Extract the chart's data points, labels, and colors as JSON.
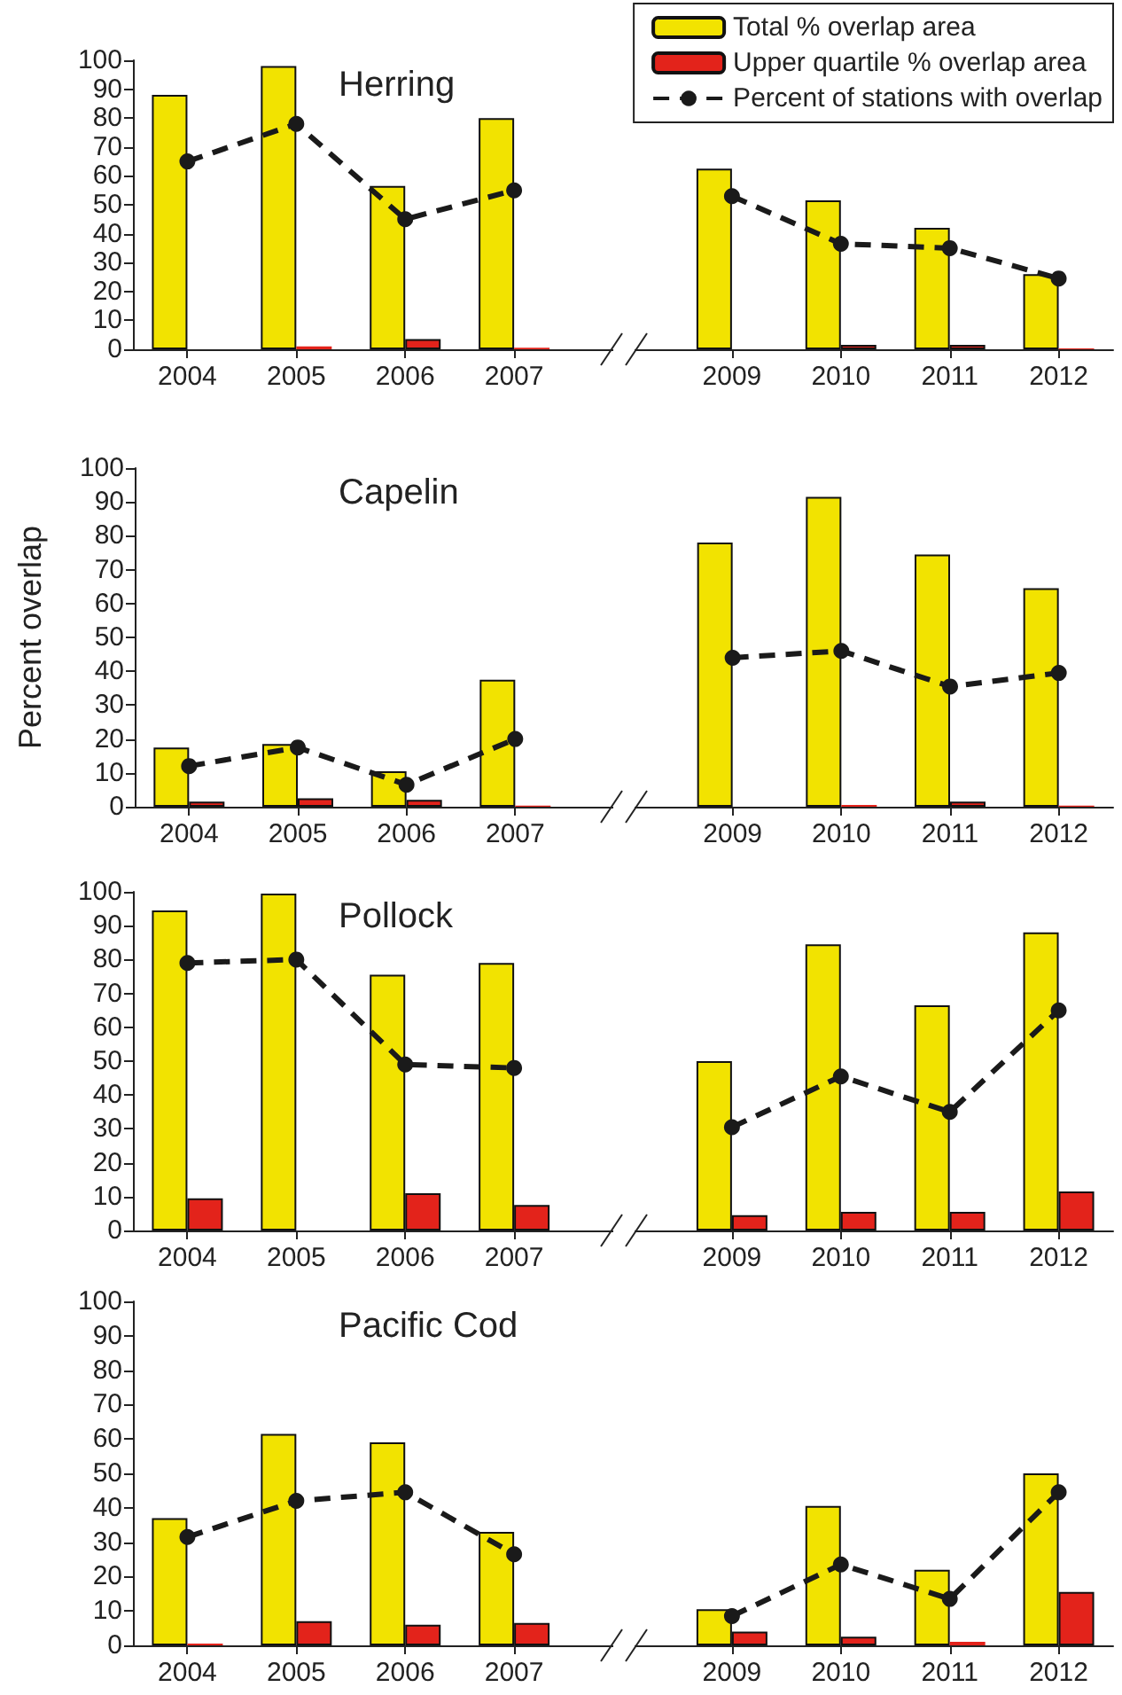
{
  "chart_data": [
    {
      "type": "bar",
      "title": "Herring",
      "categories": [
        "2004",
        "2005",
        "2006",
        "2007",
        null,
        "2009",
        "2010",
        "2011",
        "2012"
      ],
      "series": [
        {
          "name": "Total % overlap area",
          "color": "#f2e300",
          "values": [
            88,
            98,
            56.5,
            80,
            null,
            62.5,
            51.5,
            42,
            26
          ]
        },
        {
          "name": "Upper quartile % overlap area",
          "color": "#e3231b",
          "values": [
            0,
            1,
            3.5,
            0.5,
            null,
            0,
            1.5,
            1.5,
            0.3
          ]
        },
        {
          "name": "Percent of stations with overlap",
          "type": "line",
          "color": "#1a1a1a",
          "values": [
            65,
            78,
            45,
            55,
            null,
            53,
            36.5,
            35,
            24.5
          ]
        }
      ],
      "ylim": [
        0,
        100
      ],
      "yticks": [
        0,
        10,
        20,
        30,
        40,
        50,
        60,
        70,
        80,
        90,
        100
      ],
      "grid": false,
      "legend": "top right",
      "marker": "circle",
      "line_style": "dashed"
    },
    {
      "type": "bar",
      "title": "Capelin",
      "ylabel": "Percent overlap",
      "categories": [
        "2004",
        "2005",
        "2006",
        "2007",
        null,
        "2009",
        "2010",
        "2011",
        "2012"
      ],
      "series": [
        {
          "color": "#f2e300",
          "values": [
            17.5,
            18.5,
            10.5,
            37.5,
            null,
            78,
            91.5,
            74.5,
            64.5
          ]
        },
        {
          "color": "#e3231b",
          "values": [
            1.5,
            2.5,
            2,
            0.3,
            null,
            0,
            0.5,
            1.5,
            0.3
          ]
        },
        {
          "type": "line",
          "color": "#1a1a1a",
          "values": [
            12,
            17.5,
            6.5,
            20,
            null,
            44,
            46,
            35.5,
            39.5
          ]
        }
      ],
      "ylim": [
        0,
        100
      ],
      "yticks": [
        0,
        10,
        20,
        30,
        40,
        50,
        60,
        70,
        80,
        90,
        100
      ],
      "grid": false,
      "marker": "circle",
      "line_style": "dashed"
    },
    {
      "type": "bar",
      "title": "Pollock",
      "categories": [
        "2004",
        "2005",
        "2006",
        "2007",
        null,
        "2009",
        "2010",
        "2011",
        "2012"
      ],
      "series": [
        {
          "color": "#f2e300",
          "values": [
            94.5,
            99.5,
            75.5,
            79,
            null,
            50,
            84.5,
            66.5,
            88
          ]
        },
        {
          "color": "#e3231b",
          "values": [
            9.5,
            0,
            11,
            7.5,
            null,
            4.5,
            5.5,
            5.5,
            11.5
          ]
        },
        {
          "type": "line",
          "color": "#1a1a1a",
          "values": [
            79,
            80,
            49,
            48,
            null,
            30.5,
            45.5,
            35,
            65
          ]
        }
      ],
      "ylim": [
        0,
        100
      ],
      "yticks": [
        0,
        10,
        20,
        30,
        40,
        50,
        60,
        70,
        80,
        90,
        100
      ],
      "grid": false,
      "marker": "circle",
      "line_style": "dashed"
    },
    {
      "type": "bar",
      "title": "Pacific Cod",
      "categories": [
        "2004",
        "2005",
        "2006",
        "2007",
        null,
        "2009",
        "2010",
        "2011",
        "2012"
      ],
      "series": [
        {
          "color": "#f2e300",
          "values": [
            37,
            61.5,
            59,
            33,
            null,
            10.5,
            40.5,
            22,
            50
          ]
        },
        {
          "color": "#e3231b",
          "values": [
            0.5,
            7,
            6,
            6.5,
            null,
            4,
            2.5,
            1,
            15.5
          ]
        },
        {
          "type": "line",
          "color": "#1a1a1a",
          "values": [
            31.5,
            42,
            44.5,
            26.5,
            null,
            8.5,
            23.5,
            13.5,
            44.5
          ]
        }
      ],
      "ylim": [
        0,
        100
      ],
      "yticks": [
        0,
        10,
        20,
        30,
        40,
        50,
        60,
        70,
        80,
        90,
        100
      ],
      "grid": false,
      "marker": "circle",
      "line_style": "dashed"
    }
  ]
}
